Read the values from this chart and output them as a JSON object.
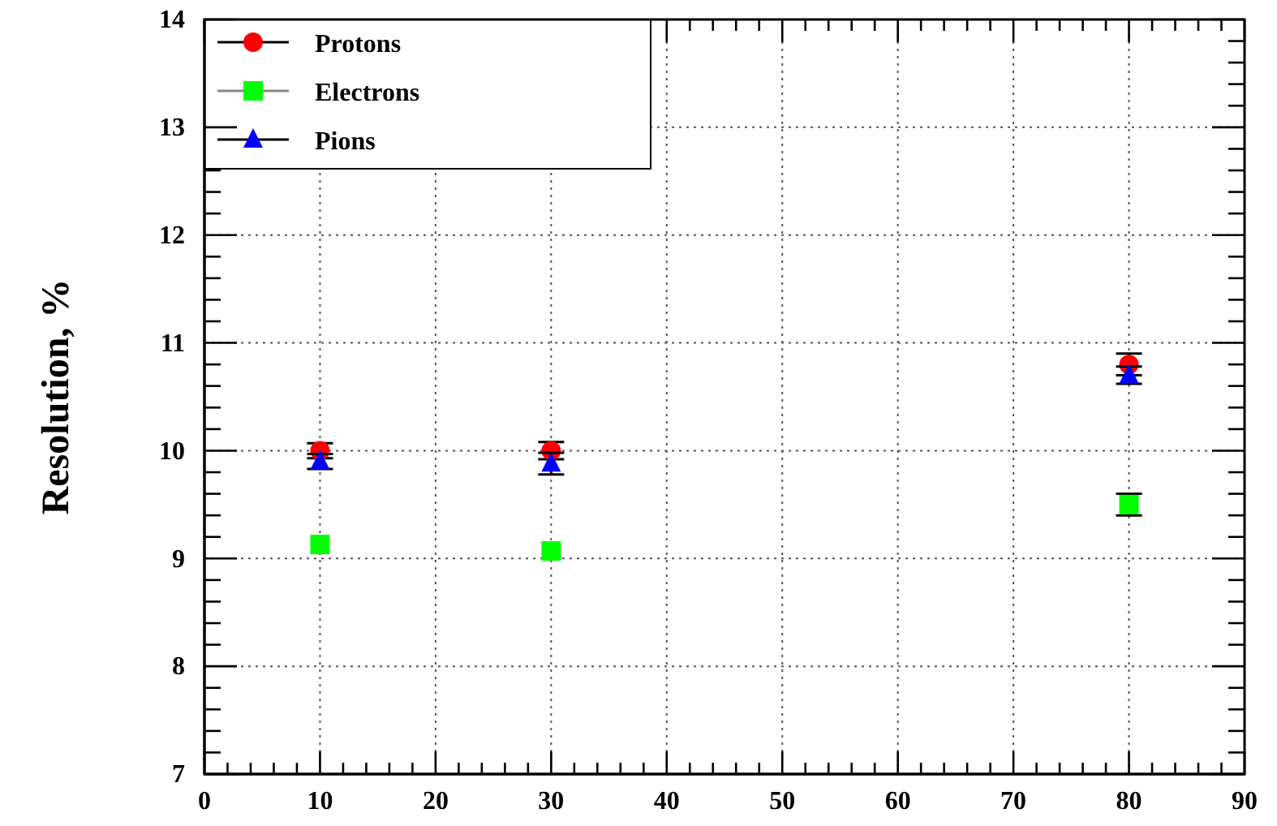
{
  "chart_data": {
    "type": "scatter",
    "ylabel": "Resolution, %",
    "x": [
      10,
      30,
      80
    ],
    "series": [
      {
        "name": "Protons",
        "color": "#ff0000",
        "marker": "circle",
        "values": [
          10.0,
          10.0,
          10.8
        ],
        "errors": [
          0.07,
          0.08,
          0.1
        ]
      },
      {
        "name": "Electrons",
        "color": "#00ff00",
        "marker": "square",
        "values": [
          9.13,
          9.07,
          9.5
        ],
        "errors": [
          null,
          null,
          0.1
        ]
      },
      {
        "name": "Pions",
        "color": "#0000ff",
        "marker": "triangle",
        "values": [
          9.9,
          9.88,
          10.7
        ],
        "errors": [
          0.07,
          0.1,
          0.08
        ]
      }
    ],
    "xlim": [
      0,
      90
    ],
    "xticks": [
      0,
      10,
      20,
      30,
      40,
      50,
      60,
      70,
      80,
      90
    ],
    "ylim": [
      7,
      14
    ],
    "yticks": [
      7,
      8,
      9,
      10,
      11,
      12,
      13,
      14
    ],
    "grid": true,
    "legend": "top left"
  }
}
